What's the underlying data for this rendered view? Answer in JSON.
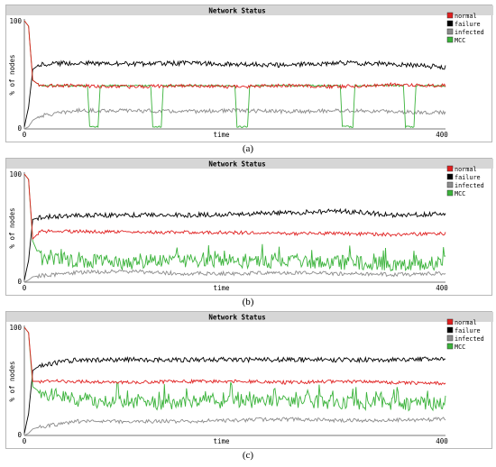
{
  "subcaptions": [
    "(a)",
    "(b)",
    "(c)"
  ],
  "colors": {
    "normal": "#e02020",
    "failure": "#000000",
    "infected": "#8c8c8c",
    "MCC": "#3bb33b",
    "title_bar": "#d6d6d6",
    "frame": "#777777"
  },
  "chart_data": [
    {
      "type": "line",
      "title": "Network Status",
      "xlabel": "time",
      "ylabel": "% of nodes",
      "xlim": [
        0,
        400
      ],
      "ylim": [
        0,
        100
      ],
      "xticks": [
        "0",
        "400"
      ],
      "yticks": [
        "0",
        "100"
      ],
      "legend_position": "right",
      "grid": false,
      "series": [
        {
          "name": "normal",
          "points": [
            [
              0,
              100
            ],
            [
              4,
              95
            ],
            [
              8,
              45
            ],
            [
              15,
              40
            ],
            [
              50,
              40
            ],
            [
              100,
              39
            ],
            [
              150,
              40
            ],
            [
              200,
              39
            ],
            [
              250,
              40
            ],
            [
              300,
              39
            ],
            [
              350,
              41
            ],
            [
              400,
              40
            ]
          ]
        },
        {
          "name": "failure",
          "points": [
            [
              0,
              2
            ],
            [
              4,
              20
            ],
            [
              8,
              55
            ],
            [
              15,
              60
            ],
            [
              50,
              61
            ],
            [
              100,
              60
            ],
            [
              150,
              61
            ],
            [
              200,
              60
            ],
            [
              250,
              59
            ],
            [
              300,
              61
            ],
            [
              350,
              60
            ],
            [
              400,
              57
            ]
          ]
        },
        {
          "name": "infected",
          "points": [
            [
              0,
              0
            ],
            [
              4,
              2
            ],
            [
              8,
              8
            ],
            [
              15,
              12
            ],
            [
              50,
              17
            ],
            [
              100,
              17
            ],
            [
              150,
              16
            ],
            [
              200,
              17
            ],
            [
              250,
              16
            ],
            [
              300,
              17
            ],
            [
              350,
              16
            ],
            [
              400,
              15
            ]
          ]
        },
        {
          "name": "MCC",
          "points": [
            [
              0,
              100
            ],
            [
              4,
              95
            ],
            [
              8,
              45
            ],
            [
              15,
              40
            ],
            [
              60,
              40
            ],
            [
              62,
              2
            ],
            [
              70,
              2
            ],
            [
              72,
              40
            ],
            [
              120,
              40
            ],
            [
              122,
              2
            ],
            [
              130,
              2
            ],
            [
              132,
              40
            ],
            [
              200,
              40
            ],
            [
              202,
              2
            ],
            [
              212,
              2
            ],
            [
              214,
              40
            ],
            [
              300,
              40
            ],
            [
              302,
              2
            ],
            [
              312,
              2
            ],
            [
              314,
              40
            ],
            [
              360,
              40
            ],
            [
              362,
              2
            ],
            [
              370,
              2
            ],
            [
              372,
              40
            ],
            [
              400,
              40
            ]
          ]
        }
      ]
    },
    {
      "type": "line",
      "title": "Network Status",
      "xlabel": "time",
      "ylabel": "% of nodes",
      "xlim": [
        0,
        400
      ],
      "ylim": [
        0,
        100
      ],
      "xticks": [
        "0",
        "400"
      ],
      "yticks": [
        "0",
        "100"
      ],
      "legend_position": "right",
      "grid": false,
      "series": [
        {
          "name": "normal",
          "points": [
            [
              0,
              100
            ],
            [
              4,
              95
            ],
            [
              8,
              40
            ],
            [
              15,
              47
            ],
            [
              50,
              47
            ],
            [
              100,
              46
            ],
            [
              150,
              46
            ],
            [
              200,
              46
            ],
            [
              250,
              45
            ],
            [
              300,
              45
            ],
            [
              350,
              44
            ],
            [
              400,
              45
            ]
          ]
        },
        {
          "name": "failure",
          "points": [
            [
              0,
              2
            ],
            [
              4,
              20
            ],
            [
              8,
              58
            ],
            [
              15,
              60
            ],
            [
              50,
              62
            ],
            [
              100,
              62
            ],
            [
              150,
              62
            ],
            [
              200,
              63
            ],
            [
              250,
              64
            ],
            [
              300,
              66
            ],
            [
              350,
              62
            ],
            [
              400,
              63
            ]
          ]
        },
        {
          "name": "infected",
          "points": [
            [
              0,
              0
            ],
            [
              4,
              2
            ],
            [
              8,
              5
            ],
            [
              15,
              6
            ],
            [
              50,
              9
            ],
            [
              100,
              10
            ],
            [
              150,
              8
            ],
            [
              200,
              8
            ],
            [
              250,
              9
            ],
            [
              300,
              8
            ],
            [
              350,
              7
            ],
            [
              400,
              8
            ]
          ]
        },
        {
          "name": "MCC",
          "points": [
            [
              0,
              100
            ],
            [
              4,
              95
            ],
            [
              8,
              38
            ],
            [
              15,
              22
            ],
            [
              50,
              20
            ],
            [
              100,
              18
            ],
            [
              150,
              20
            ],
            [
              200,
              18
            ],
            [
              250,
              20
            ],
            [
              300,
              18
            ],
            [
              350,
              17
            ],
            [
              400,
              18
            ]
          ]
        }
      ]
    },
    {
      "type": "line",
      "title": "Network Status",
      "xlabel": "time",
      "ylabel": "% of nodes",
      "xlim": [
        0,
        400
      ],
      "ylim": [
        0,
        100
      ],
      "xticks": [
        "0",
        "400"
      ],
      "yticks": [
        "0",
        "100"
      ],
      "legend_position": "right",
      "grid": false,
      "series": [
        {
          "name": "normal",
          "points": [
            [
              0,
              100
            ],
            [
              4,
              95
            ],
            [
              8,
              50
            ],
            [
              15,
              50
            ],
            [
              50,
              50
            ],
            [
              100,
              49
            ],
            [
              150,
              50
            ],
            [
              200,
              50
            ],
            [
              250,
              49
            ],
            [
              300,
              50
            ],
            [
              350,
              49
            ],
            [
              400,
              48
            ]
          ]
        },
        {
          "name": "failure",
          "points": [
            [
              0,
              2
            ],
            [
              4,
              20
            ],
            [
              8,
              60
            ],
            [
              15,
              65
            ],
            [
              50,
              70
            ],
            [
              100,
              70
            ],
            [
              150,
              70
            ],
            [
              200,
              70
            ],
            [
              250,
              70
            ],
            [
              300,
              70
            ],
            [
              350,
              70
            ],
            [
              400,
              71
            ]
          ]
        },
        {
          "name": "infected",
          "points": [
            [
              0,
              0
            ],
            [
              4,
              2
            ],
            [
              8,
              6
            ],
            [
              15,
              8
            ],
            [
              50,
              13
            ],
            [
              100,
              13
            ],
            [
              150,
              13
            ],
            [
              200,
              14
            ],
            [
              250,
              15
            ],
            [
              300,
              14
            ],
            [
              350,
              14
            ],
            [
              400,
              15
            ]
          ]
        },
        {
          "name": "MCC",
          "points": [
            [
              0,
              100
            ],
            [
              4,
              95
            ],
            [
              8,
              45
            ],
            [
              15,
              40
            ],
            [
              50,
              33
            ],
            [
              100,
              30
            ],
            [
              150,
              30
            ],
            [
              200,
              32
            ],
            [
              250,
              31
            ],
            [
              300,
              30
            ],
            [
              350,
              29
            ],
            [
              400,
              30
            ]
          ]
        }
      ]
    }
  ]
}
